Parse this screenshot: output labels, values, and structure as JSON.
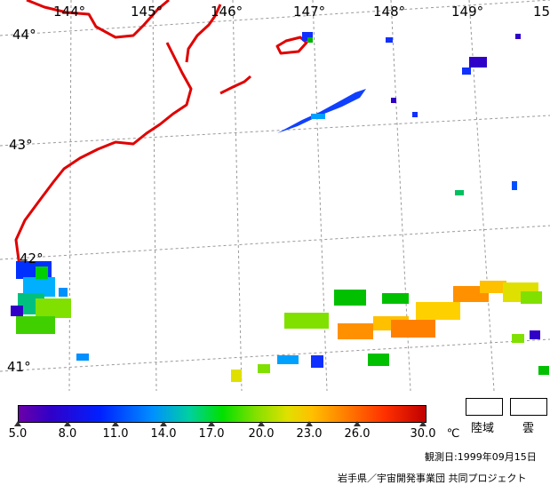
{
  "map": {
    "longitude_labels": [
      "144°",
      "145°",
      "146°",
      "147°",
      "148°",
      "149°",
      "15"
    ],
    "latitude_labels": [
      "44°",
      "43°",
      "42°",
      "41°"
    ]
  },
  "colorbar": {
    "ticks": [
      "5.0",
      "8.0",
      "11.0",
      "14.0",
      "17.0",
      "20.0",
      "23.0",
      "26.0",
      "30.0"
    ],
    "unit": "℃"
  },
  "legend": {
    "land_label": "陸域",
    "cloud_label": "雲"
  },
  "footer": {
    "observation_date": "観測日:1999年09月15日",
    "credit": "岩手県／宇宙開発事業団 共同プロジェクト"
  },
  "colors": {
    "coastline": "#e00000",
    "grid": "#999999"
  }
}
